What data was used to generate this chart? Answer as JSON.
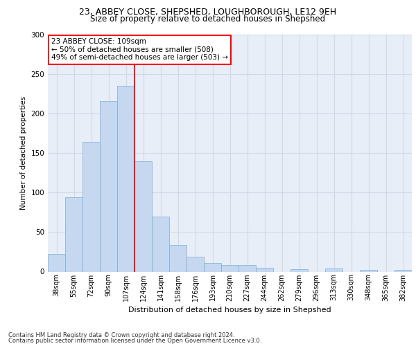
{
  "title_line1": "23, ABBEY CLOSE, SHEPSHED, LOUGHBOROUGH, LE12 9EH",
  "title_line2": "Size of property relative to detached houses in Shepshed",
  "xlabel": "Distribution of detached houses by size in Shepshed",
  "ylabel": "Number of detached properties",
  "footer_line1": "Contains HM Land Registry data © Crown copyright and database right 2024.",
  "footer_line2": "Contains public sector information licensed under the Open Government Licence v3.0.",
  "categories": [
    "38sqm",
    "55sqm",
    "72sqm",
    "90sqm",
    "107sqm",
    "124sqm",
    "141sqm",
    "158sqm",
    "176sqm",
    "193sqm",
    "210sqm",
    "227sqm",
    "244sqm",
    "262sqm",
    "279sqm",
    "296sqm",
    "313sqm",
    "330sqm",
    "348sqm",
    "365sqm",
    "382sqm"
  ],
  "values": [
    22,
    94,
    164,
    216,
    235,
    140,
    70,
    34,
    19,
    11,
    8,
    8,
    5,
    0,
    3,
    0,
    4,
    0,
    2,
    0,
    2
  ],
  "bar_color": "#c5d8f0",
  "bar_edge_color": "#7aadd4",
  "grid_color": "#d0d8e8",
  "background_color": "#e8eef8",
  "annotation_text_line1": "23 ABBEY CLOSE: 109sqm",
  "annotation_text_line2": "← 50% of detached houses are smaller (508)",
  "annotation_text_line3": "49% of semi-detached houses are larger (503) →",
  "vline_x_index": 4,
  "vline_color": "red",
  "ylim": [
    0,
    300
  ],
  "yticks": [
    0,
    50,
    100,
    150,
    200,
    250,
    300
  ]
}
